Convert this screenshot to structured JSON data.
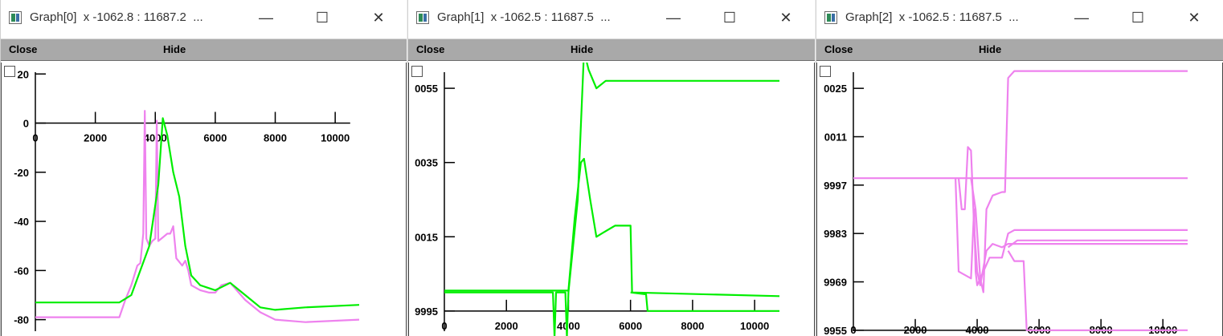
{
  "windows": [
    {
      "title": "Graph[0]  x -1062.8 : 11687.2  ...",
      "menu": {
        "close_label": "Close",
        "hide_label": "Hide"
      },
      "controls": {
        "minimize": "—",
        "maximize": "☐",
        "close": "✕"
      },
      "chart_data": {
        "type": "line",
        "x_ticks": [
          "2000",
          "4000",
          "6000",
          "8000",
          "10000"
        ],
        "y_ticks": [
          "20",
          "0",
          "-20",
          "-40",
          "-60",
          "-80"
        ],
        "xlim": [
          -1062.8,
          11687.2
        ],
        "ylim": [
          -86,
          24
        ],
        "x_axis_at_y": 0,
        "y_axis_at_x": 0,
        "x_zero_label": "0",
        "series": [
          {
            "color": "#ee82ee",
            "points": [
              [
                0,
                -79
              ],
              [
                2800,
                -79
              ],
              [
                3000,
                -72
              ],
              [
                3200,
                -66
              ],
              [
                3400,
                -58
              ],
              [
                3500,
                -57
              ],
              [
                3600,
                -45
              ],
              [
                3650,
                5
              ],
              [
                3700,
                -47
              ],
              [
                3800,
                -50
              ],
              [
                3900,
                -48
              ],
              [
                4000,
                -47
              ],
              [
                4050,
                1
              ],
              [
                4100,
                -48
              ],
              [
                4300,
                -46
              ],
              [
                4400,
                -45
              ],
              [
                4500,
                -45
              ],
              [
                4600,
                -42
              ],
              [
                4700,
                -55
              ],
              [
                4900,
                -58
              ],
              [
                5000,
                -56
              ],
              [
                5100,
                -60
              ],
              [
                5200,
                -66
              ],
              [
                5500,
                -68
              ],
              [
                5800,
                -69
              ],
              [
                6000,
                -69
              ],
              [
                6200,
                -66
              ],
              [
                6500,
                -65
              ],
              [
                7000,
                -72
              ],
              [
                7500,
                -77
              ],
              [
                8000,
                -80
              ],
              [
                9000,
                -81
              ],
              [
                10800,
                -80
              ]
            ]
          },
          {
            "color": "#00ee00",
            "points": [
              [
                0,
                -73
              ],
              [
                2800,
                -73
              ],
              [
                3200,
                -70
              ],
              [
                3500,
                -60
              ],
              [
                3800,
                -50
              ],
              [
                4100,
                -25
              ],
              [
                4250,
                2
              ],
              [
                4400,
                -5
              ],
              [
                4600,
                -20
              ],
              [
                4800,
                -30
              ],
              [
                5000,
                -50
              ],
              [
                5200,
                -62
              ],
              [
                5500,
                -66
              ],
              [
                6000,
                -68
              ],
              [
                6500,
                -65
              ],
              [
                7000,
                -70
              ],
              [
                7500,
                -75
              ],
              [
                8000,
                -76
              ],
              [
                9000,
                -75
              ],
              [
                10800,
                -74
              ]
            ]
          }
        ]
      }
    },
    {
      "title": "Graph[1]  x -1062.5 : 11687.5  ...",
      "menu": {
        "close_label": "Close",
        "hide_label": "Hide"
      },
      "controls": {
        "minimize": "—",
        "maximize": "☐",
        "close": "✕"
      },
      "chart_data": {
        "type": "line",
        "x_ticks": [
          "0",
          "2000",
          "4000",
          "6000",
          "8000",
          "10000"
        ],
        "y_ticks": [
          "0055",
          "0035",
          "0015",
          "9995"
        ],
        "xlim": [
          -1062.5,
          11687.5
        ],
        "ylim": [
          0.99887,
          1.00615
        ],
        "x_axis_at_y": 0.9995,
        "y_axis_at_x": 0,
        "x_zero_label": "",
        "series": [
          {
            "color": "#00ee00",
            "points": [
              [
                0,
                1.0
              ],
              [
                3500,
                1.0
              ],
              [
                3550,
                0.9988
              ],
              [
                3600,
                1.0
              ],
              [
                3900,
                1.0
              ],
              [
                3950,
                0.9988
              ],
              [
                4000,
                1.0
              ],
              [
                4300,
                1.0025
              ],
              [
                4500,
                1.0065
              ],
              [
                4650,
                1.006
              ],
              [
                4900,
                1.0055
              ],
              [
                5200,
                1.0057
              ],
              [
                10800,
                1.0057
              ]
            ]
          },
          {
            "color": "#00ee00",
            "points": [
              [
                0,
                1.00005
              ],
              [
                4000,
                1.00005
              ],
              [
                4200,
                1.002
              ],
              [
                4400,
                1.0035
              ],
              [
                4500,
                1.0036
              ],
              [
                4700,
                1.0025
              ],
              [
                4900,
                1.0015
              ],
              [
                5100,
                1.0016
              ],
              [
                5500,
                1.0018
              ],
              [
                6000,
                1.0018
              ],
              [
                6050,
                1.0
              ],
              [
                10800,
                0.9999
              ]
            ]
          },
          {
            "color": "#00ee00",
            "points": [
              [
                6000,
                1.0
              ],
              [
                6500,
                0.99995
              ],
              [
                6550,
                0.9995
              ],
              [
                10800,
                0.9995
              ]
            ]
          }
        ]
      }
    },
    {
      "title": "Graph[2]  x -1062.5 : 11687.5  ...",
      "menu": {
        "close_label": "Close",
        "hide_label": "Hide"
      },
      "controls": {
        "minimize": "—",
        "maximize": "☐",
        "close": "✕"
      },
      "chart_data": {
        "type": "line",
        "x_ticks": [
          "0",
          "2000",
          "4000",
          "6000",
          "8000",
          "10000"
        ],
        "y_ticks": [
          "0025",
          "0011",
          "9997",
          "9983",
          "9969",
          "9955"
        ],
        "xlim": [
          -1062.5,
          11687.5
        ],
        "ylim": [
          0.99538,
          1.0032
        ],
        "x_axis_at_y": 0.9955,
        "y_axis_at_x": 0,
        "x_zero_label": "",
        "series": [
          {
            "color": "#ee82ee",
            "points": [
              [
                0,
                0.9999
              ],
              [
                10800,
                0.9999
              ]
            ]
          },
          {
            "color": "#ee82ee",
            "points": [
              [
                3300,
                0.9999
              ],
              [
                3400,
                0.9972
              ],
              [
                3800,
                0.997
              ],
              [
                3900,
                0.999
              ],
              [
                3950,
                0.9972
              ],
              [
                4000,
                0.9968
              ],
              [
                4200,
                0.9972
              ],
              [
                4400,
                0.9976
              ],
              [
                4600,
                0.9976
              ],
              [
                4800,
                0.9976
              ],
              [
                5000,
                0.9983
              ],
              [
                5200,
                0.9984
              ],
              [
                10800,
                0.9984
              ]
            ]
          },
          {
            "color": "#ee82ee",
            "points": [
              [
                3400,
                0.9999
              ],
              [
                3500,
                0.999
              ],
              [
                3600,
                0.999
              ],
              [
                3700,
                1.0008
              ],
              [
                3800,
                1.0007
              ],
              [
                3900,
                0.9985
              ],
              [
                4000,
                0.9972
              ],
              [
                4100,
                0.9968
              ],
              [
                4300,
                0.9978
              ],
              [
                4500,
                0.998
              ],
              [
                4800,
                0.9979
              ],
              [
                5000,
                0.998
              ],
              [
                10800,
                0.998
              ]
            ]
          },
          {
            "color": "#ee82ee",
            "points": [
              [
                3800,
                0.9999
              ],
              [
                3950,
                0.999
              ],
              [
                4100,
                0.997
              ],
              [
                4200,
                0.9966
              ],
              [
                4300,
                0.999
              ],
              [
                4500,
                0.9994
              ],
              [
                4800,
                0.9995
              ],
              [
                4900,
                0.9995
              ],
              [
                5000,
                1.0028
              ],
              [
                5200,
                1.003
              ],
              [
                10800,
                1.003
              ]
            ]
          },
          {
            "color": "#ee82ee",
            "points": [
              [
                5000,
                0.9978
              ],
              [
                5200,
                0.9975
              ],
              [
                5500,
                0.9975
              ],
              [
                5600,
                0.9955
              ],
              [
                10800,
                0.9955
              ]
            ]
          },
          {
            "color": "#ee82ee",
            "points": [
              [
                5000,
                0.9979
              ],
              [
                5300,
                0.9981
              ],
              [
                10800,
                0.9981
              ]
            ]
          }
        ]
      }
    }
  ]
}
